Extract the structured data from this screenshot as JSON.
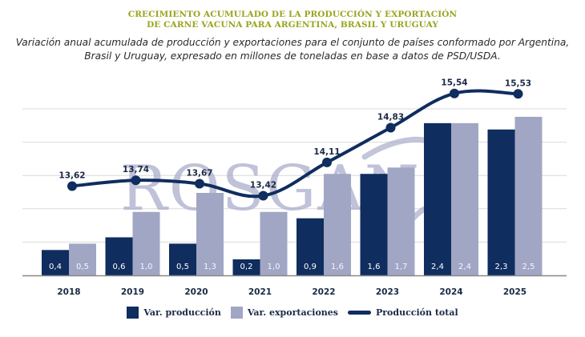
{
  "title_lines": [
    "CRECIMIENTO ACUMULADO DE LA PRODUCCIÓN Y EXPORTACIÓN",
    "DE CARNE VACUNA PARA ARGENTINA, BRASIL Y URUGUAY"
  ],
  "subtitle_lines": [
    "Variación anual acumulada de producción y exportaciones para el conjunto de países conformado por Argentina,",
    "Brasil y Uruguay, expresado en millones de toneladas en base a datos de PSD/USDA."
  ],
  "watermark": "ROSGAN",
  "colors": {
    "title": "#9aa51f",
    "production": "#0f2d5e",
    "exports": "#a1a6c4",
    "line": "#0f2d5e",
    "grid": "#d9d9d9",
    "watermark": "#a9aecb"
  },
  "chart_data": {
    "type": "bar",
    "title": "CRECIMIENTO ACUMULADO DE LA PRODUCCIÓN Y EXPORTACIÓN DE CARNE VACUNA PARA ARGENTINA, BRASIL Y URUGUAY",
    "subtitle": "Variación anual acumulada de producción y exportaciones para el conjunto de países conformado por Argentina, Brasil y Uruguay, expresado en millones de toneladas en base a datos de PSD/USDA.",
    "xlabel": "",
    "ylabel": "",
    "categories": [
      "2018",
      "2019",
      "2020",
      "2021",
      "2022",
      "2023",
      "2024",
      "2025"
    ],
    "series": [
      {
        "name": "Var. producción",
        "type": "bar",
        "values": [
          0.4,
          0.6,
          0.5,
          0.2,
          0.9,
          1.6,
          2.4,
          2.3
        ],
        "labels": [
          "0,4",
          "0,6",
          "0,5",
          "0,2",
          "0,9",
          "1,6",
          "2,4",
          "2,3"
        ]
      },
      {
        "name": "Var. exportaciones",
        "type": "bar",
        "values": [
          0.5,
          1.0,
          1.3,
          1.0,
          1.6,
          1.7,
          2.4,
          2.5
        ],
        "labels": [
          "0,5",
          "1,0",
          "1,3",
          "1,0",
          "1,6",
          "1,7",
          "2,4",
          "2,5"
        ]
      },
      {
        "name": "Producción total",
        "type": "line",
        "values": [
          13.62,
          13.74,
          13.67,
          13.42,
          14.11,
          14.83,
          15.54,
          15.53
        ],
        "labels": [
          "13,62",
          "13,74",
          "13,67",
          "13,42",
          "14,11",
          "14,83",
          "15,54",
          "15,53"
        ]
      }
    ],
    "bar_ylim": [
      0,
      2.6
    ],
    "line_ylim": [
      12.5,
      15.9
    ],
    "grid": true,
    "gridlines": 5,
    "legend": "bottom-center",
    "legend_entries": [
      "Var. producción",
      "Var. exportaciones",
      "Producción total"
    ]
  }
}
